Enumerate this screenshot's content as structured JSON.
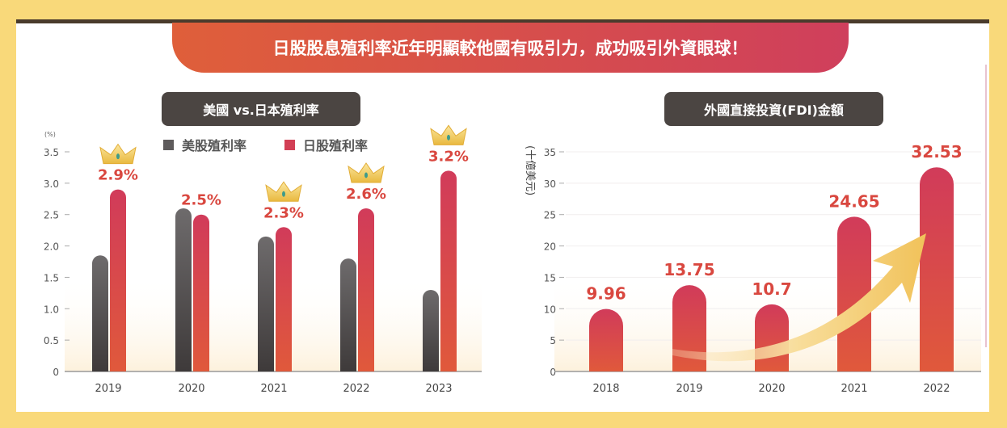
{
  "banner": {
    "title": "日股股息殖利率近年明顯較他國有吸引力，成功吸引外資眼球！"
  },
  "colors": {
    "background": "#f9d97a",
    "banner_start": "#df5f3a",
    "banner_end": "#cf3f5c",
    "us_bar": "#5e5b5c",
    "jp_bar": "#d23f55",
    "label": "#d9473f"
  },
  "chart_data": [
    {
      "type": "bar",
      "title": "美國 vs.日本殖利率",
      "ylabel": "(%)",
      "xlabel": "",
      "ylim": [
        0,
        3.5
      ],
      "yticks": [
        "0",
        "0.5",
        "1.0",
        "1.5",
        "2.0",
        "2.5",
        "3.0",
        "3.5"
      ],
      "categories": [
        "2019",
        "2020",
        "2021",
        "2022",
        "2023"
      ],
      "legend_position": "top",
      "series": [
        {
          "name": "美股殖利率",
          "values": [
            1.85,
            2.6,
            2.15,
            1.8,
            1.3
          ],
          "color": "#5e5b5c"
        },
        {
          "name": "日股殖利率",
          "values": [
            2.9,
            2.5,
            2.3,
            2.6,
            3.2
          ],
          "color": "#d23f55"
        }
      ],
      "data_labels": [
        "2.9%",
        "2.5%",
        "2.3%",
        "2.6%",
        "3.2%"
      ],
      "crown_icons_on": [
        "2019",
        "2021",
        "2022",
        "2023"
      ]
    },
    {
      "type": "bar",
      "title": "外國直接投資(FDI)金額",
      "ylabel": "(十億美元)",
      "xlabel": "",
      "ylim": [
        0,
        35
      ],
      "yticks": [
        "0",
        "5",
        "10",
        "15",
        "20",
        "25",
        "30",
        "35"
      ],
      "categories": [
        "2018",
        "2019",
        "2020",
        "2021",
        "2022"
      ],
      "series": [
        {
          "values": [
            9.96,
            13.75,
            10.7,
            24.65,
            32.53
          ],
          "color": "#d23f55"
        }
      ],
      "data_labels": [
        "9.96",
        "13.75",
        "10.7",
        "24.65",
        "32.53"
      ],
      "grid": true,
      "annotation": "rising-arrow-icon"
    }
  ]
}
